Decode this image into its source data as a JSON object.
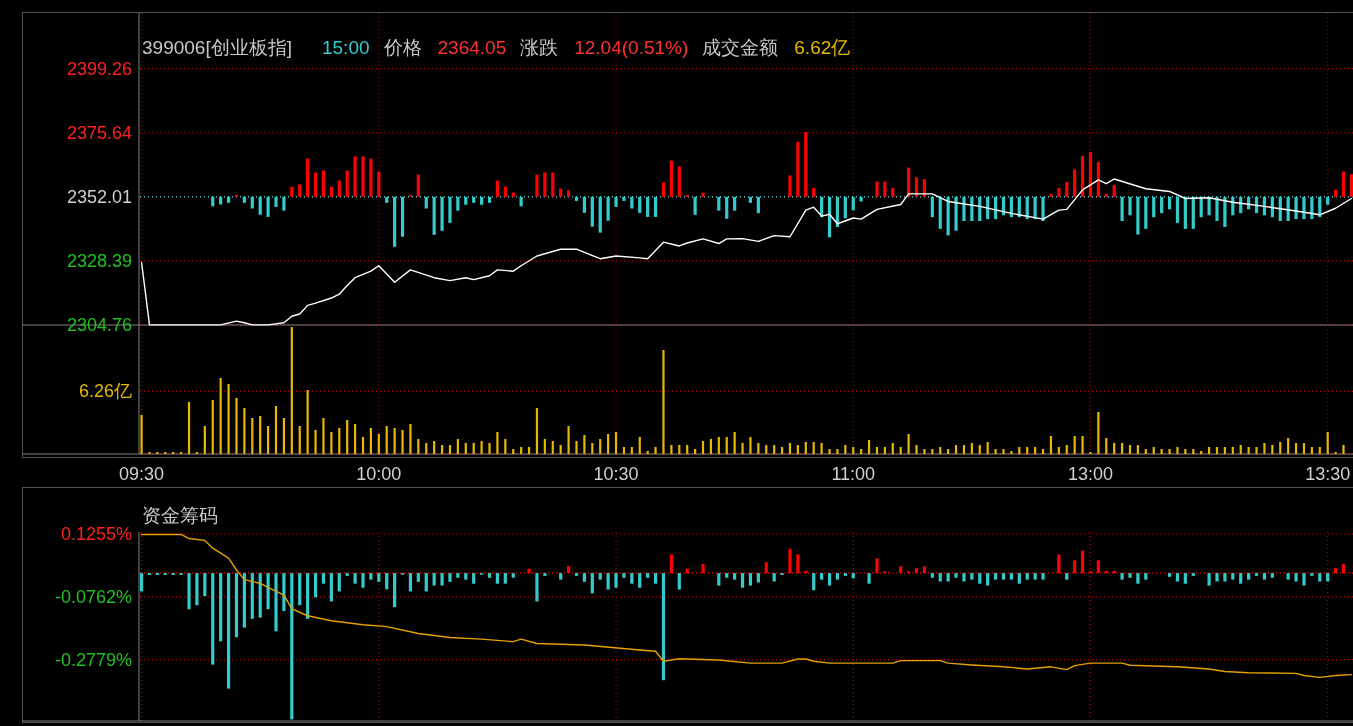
{
  "chart_data": [
    {
      "type": "line",
      "title": "399006[创业板指]",
      "annotations": [
        "15:00",
        "价格",
        "2364.05",
        "涨跌",
        "12.04(0.51%)",
        "成交金额",
        "6.62亿"
      ],
      "categories": [
        null,
        null,
        null,
        null,
        null,
        null,
        null,
        null,
        null,
        null,
        null,
        null,
        null,
        null,
        null,
        null,
        null,
        null,
        null,
        null,
        null,
        null,
        null,
        null,
        null,
        null,
        null,
        null,
        null,
        null,
        null,
        null,
        null,
        null,
        null,
        null,
        null,
        null,
        null,
        null,
        null,
        null,
        null,
        null,
        null,
        null,
        null,
        null,
        null,
        null,
        null,
        null,
        null,
        null,
        null,
        null,
        null,
        null,
        null,
        null,
        null,
        null,
        null,
        null,
        null,
        null,
        null,
        null,
        null,
        null,
        null,
        null,
        null,
        null,
        null,
        null,
        null,
        null,
        null,
        null,
        null,
        null,
        null,
        null,
        null,
        null,
        null,
        null,
        null,
        null,
        null,
        null,
        null,
        null,
        null,
        null,
        null,
        null,
        null,
        null,
        null,
        null,
        null,
        null,
        null,
        null,
        null,
        null,
        null,
        null,
        null,
        null,
        null,
        null,
        null,
        null,
        null,
        null,
        null,
        null,
        null,
        null,
        null,
        null,
        null,
        null,
        null,
        null,
        null,
        null,
        null,
        null,
        null,
        null,
        null,
        null,
        null,
        null,
        null,
        null,
        null,
        null,
        null,
        null,
        null,
        null,
        null,
        null,
        null,
        null,
        null,
        null,
        null,
        null
      ],
      "ylim": [
        2304.76,
        2419.8
      ],
      "yticks": [
        2304.76,
        2328.39,
        2352.01,
        2375.64,
        2399.26
      ],
      "grid": true,
      "tick_labels": "y",
      "ref_lines": [
        {
          "axis": "y",
          "value": 2352.01,
          "line_style": "dotted",
          "color": "#33cccc"
        }
      ],
      "series": [
        {
          "type": "bar",
          "color": "#ff0000",
          "base": [
            null,
            null,
            null,
            null,
            null,
            null,
            null,
            null,
            null,
            null,
            null,
            null,
            2352.01,
            null,
            null,
            null,
            null,
            null,
            null,
            2352.01,
            2352.01,
            2352.01,
            2352.01,
            2352.01,
            2352.01,
            2352.01,
            2352.01,
            2352.01,
            2352.01,
            2352.01,
            2352.01,
            null,
            null,
            null,
            2352.01,
            2352.01,
            null,
            null,
            null,
            null,
            null,
            null,
            null,
            null,
            null,
            2352.01,
            2352.01,
            2352.01,
            null,
            null,
            2352.01,
            2352.01,
            2352.01,
            2352.01,
            2352.01,
            null,
            null,
            null,
            null,
            null,
            null,
            null,
            null,
            null,
            null,
            null,
            2352.01,
            2352.01,
            2352.01,
            2352.01,
            null,
            2352.01,
            null,
            null,
            null,
            null,
            null,
            null,
            null,
            null,
            null,
            null,
            2352.01,
            2352.01,
            2352.01,
            2352.01,
            null,
            null,
            null,
            null,
            null,
            null,
            null,
            2352.01,
            2352.01,
            2352.01,
            null,
            2352.01,
            2352.01,
            2352.01,
            null,
            null,
            null,
            null,
            null,
            null,
            null,
            null,
            null,
            null,
            null,
            null,
            null,
            null,
            null,
            2352.01,
            2352.01,
            2352.01,
            2352.01,
            2352.01,
            2352.01,
            2352.01,
            2352.01,
            2352.01,
            null,
            null,
            null,
            null,
            null,
            null,
            null,
            null,
            null,
            null,
            null,
            null,
            null,
            null,
            null,
            null,
            null,
            null,
            null,
            null,
            null,
            null,
            null,
            null,
            null,
            null,
            null,
            2352.01,
            2352.01,
            2352.01
          ],
          "values": [
            null,
            null,
            null,
            null,
            null,
            null,
            null,
            null,
            null,
            null,
            null,
            null,
            0.7,
            null,
            null,
            null,
            null,
            null,
            null,
            3.7,
            4.6,
            14.1,
            9.0,
            9.7,
            3.7,
            6.0,
            9.7,
            14.9,
            14.9,
            14.1,
            9.3,
            null,
            null,
            null,
            0.7,
            8.2,
            null,
            null,
            null,
            null,
            null,
            null,
            null,
            null,
            null,
            6.0,
            3.8,
            1.6,
            null,
            null,
            8.2,
            9.0,
            9.0,
            3.1,
            2.4,
            null,
            null,
            null,
            null,
            null,
            null,
            null,
            null,
            null,
            null,
            null,
            5.3,
            13.4,
            11.2,
            0.7,
            null,
            1.5,
            null,
            null,
            null,
            null,
            null,
            null,
            null,
            null,
            null,
            null,
            7.9,
            20.3,
            23.9,
            3.3,
            null,
            null,
            null,
            null,
            null,
            null,
            null,
            5.7,
            5.7,
            3.3,
            null,
            10.8,
            7.2,
            6.5,
            null,
            null,
            null,
            null,
            null,
            null,
            null,
            null,
            null,
            null,
            null,
            null,
            null,
            null,
            null,
            1.1,
            3.3,
            5.5,
            10.1,
            15.1,
            16.5,
            12.9,
            1.1,
            4.3,
            null,
            null,
            null,
            null,
            null,
            null,
            null,
            null,
            null,
            null,
            null,
            null,
            null,
            null,
            null,
            null,
            null,
            null,
            null,
            null,
            null,
            null,
            null,
            null,
            null,
            null,
            null,
            2.6,
            9.3,
            8.3
          ]
        },
        {
          "type": "bar",
          "color": "#33cccc",
          "base": [
            null,
            null,
            null,
            null,
            null,
            null,
            null,
            null,
            null,
            2352.01,
            2352.01,
            2352.01,
            null,
            2352.01,
            2352.01,
            2352.01,
            2352.01,
            2352.01,
            2352.01,
            null,
            null,
            null,
            null,
            null,
            null,
            null,
            null,
            null,
            null,
            null,
            null,
            2352.01,
            2352.01,
            2352.01,
            null,
            null,
            2352.01,
            2352.01,
            2352.01,
            2352.01,
            2352.01,
            2352.01,
            2352.01,
            2352.01,
            2352.01,
            null,
            null,
            null,
            2352.01,
            null,
            null,
            null,
            null,
            null,
            null,
            2352.01,
            2352.01,
            2352.01,
            2352.01,
            2352.01,
            2352.01,
            2352.01,
            2352.01,
            2352.01,
            2352.01,
            2352.01,
            null,
            null,
            null,
            null,
            2352.01,
            null,
            null,
            2352.01,
            2352.01,
            2352.01,
            null,
            2352.01,
            2352.01,
            null,
            null,
            null,
            null,
            null,
            null,
            null,
            2352.01,
            2352.01,
            2352.01,
            2352.01,
            2352.01,
            2352.01,
            null,
            null,
            null,
            null,
            null,
            null,
            null,
            null,
            2352.01,
            2352.01,
            2352.01,
            2352.01,
            2352.01,
            2352.01,
            2352.01,
            2352.01,
            2352.01,
            2352.01,
            2352.01,
            2352.01,
            2352.01,
            2352.01,
            2352.01,
            null,
            null,
            null,
            null,
            null,
            null,
            null,
            null,
            null,
            2352.01,
            2352.01,
            2352.01,
            2352.01,
            2352.01,
            2352.01,
            2352.01,
            2352.01,
            2352.01,
            2352.01,
            2352.01,
            2352.01,
            2352.01,
            2352.01,
            2352.01,
            2352.01,
            2352.01,
            2352.01,
            2352.01,
            2352.01,
            2352.01,
            2352.01,
            2352.01,
            2352.01,
            2352.01,
            2352.01,
            2352.01,
            null,
            null,
            null
          ],
          "values": [
            null,
            null,
            null,
            null,
            null,
            null,
            null,
            null,
            null,
            -3.5,
            -2.8,
            -2.2,
            null,
            -2.2,
            -4.3,
            -6.6,
            -7.4,
            -3.7,
            -5.1,
            null,
            null,
            null,
            null,
            null,
            null,
            null,
            null,
            null,
            null,
            null,
            null,
            -2.2,
            -18.4,
            -14.7,
            null,
            null,
            -4.3,
            -14.0,
            -12.5,
            -9.6,
            -5.1,
            -2.9,
            -2.2,
            -2.9,
            -2.2,
            null,
            null,
            null,
            -3.5,
            null,
            null,
            null,
            null,
            null,
            null,
            -1.5,
            -5.9,
            -11.0,
            -13.2,
            -8.8,
            -3.7,
            -1.5,
            -4.3,
            -5.9,
            -7.4,
            -7.4,
            null,
            null,
            null,
            null,
            -6.6,
            null,
            null,
            -5.1,
            -8.1,
            -5.1,
            null,
            -2.2,
            -6.0,
            null,
            null,
            null,
            null,
            null,
            null,
            null,
            -7.5,
            -14.9,
            -11.1,
            -7.9,
            -5.0,
            -1.7,
            null,
            null,
            null,
            null,
            null,
            null,
            null,
            null,
            -7.5,
            -11.8,
            -14.2,
            -12.5,
            -8.9,
            -8.9,
            -8.9,
            -8.2,
            -8.2,
            -6.8,
            -7.5,
            -7.5,
            -8.2,
            -8.2,
            -8.9,
            null,
            null,
            null,
            null,
            null,
            null,
            null,
            null,
            null,
            -8.9,
            -6.8,
            -13.9,
            -11.8,
            -7.5,
            -6.0,
            -4.6,
            -9.6,
            -11.8,
            -11.8,
            -7.5,
            -6.8,
            -8.9,
            -11.1,
            -6.8,
            -6.0,
            -4.6,
            -6.0,
            -6.8,
            -7.5,
            -8.9,
            -8.9,
            -8.2,
            -8.2,
            -8.2,
            -7.5,
            -2.9,
            null,
            null,
            null
          ]
        },
        {
          "color": "#ffffff",
          "values": [
            2327.8,
            2304.8,
            null,
            null,
            null,
            null,
            null,
            null,
            null,
            null,
            2304.8,
            null,
            2306.2,
            2305.6,
            2304.8,
            null,
            2304.8,
            null,
            2305.6,
            2308.0,
            2308.8,
            2312.0,
            2312.8,
            null,
            2314.7,
            2316.1,
            2319.3,
            2322.2,
            null,
            2324.6,
            2326.6,
            null,
            2320.5,
            null,
            2325.1,
            null,
            null,
            2322.2,
            null,
            2321.1,
            null,
            2322.2,
            2321.5,
            null,
            2322.9,
            2325.1,
            null,
            2324.6,
            2326.6,
            null,
            2330.2,
            null,
            null,
            2332.7,
            null,
            2332.7,
            null,
            null,
            2329.2,
            null,
            2330.2,
            null,
            null,
            2329.5,
            2329.2,
            null,
            2335.3,
            null,
            2333.9,
            2335.0,
            null,
            2336.5,
            null,
            2334.8,
            2336.5,
            null,
            2336.6,
            null,
            2335.6,
            null,
            2337.7,
            null,
            2337.3,
            null,
            2347.1,
            2348.2,
            2344.9,
            2345.6,
            2342.1,
            null,
            2344.2,
            2343.8,
            null,
            2347.4,
            null,
            null,
            2349.2,
            2353.1,
            null,
            null,
            2353.1,
            null,
            2350.3,
            null,
            null,
            null,
            2348.5,
            null,
            null,
            null,
            2345.9,
            null,
            null,
            null,
            2343.8,
            null,
            2347.1,
            2347.4,
            null,
            2354.6,
            2356.4,
            2358.3,
            2356.9,
            2358.6,
            null,
            null,
            null,
            2355.0,
            null,
            null,
            2354.0,
            null,
            2351.4,
            null,
            null,
            2351.7,
            null,
            null,
            2350.0,
            null,
            null,
            null,
            2348.5,
            null,
            null,
            null,
            2346.8,
            null,
            null,
            2345.4,
            null,
            2347.8,
            null,
            2351.4
          ]
        }
      ]
    },
    {
      "type": "bar",
      "color": "#e6b800",
      "categories": [
        "09:30",
        null,
        null,
        null,
        null,
        null,
        null,
        null,
        null,
        null,
        null,
        null,
        null,
        null,
        null,
        null,
        null,
        null,
        null,
        null,
        null,
        null,
        null,
        null,
        null,
        null,
        null,
        null,
        null,
        null,
        "10:00",
        null,
        null,
        null,
        null,
        null,
        null,
        null,
        null,
        null,
        null,
        null,
        null,
        null,
        null,
        null,
        null,
        null,
        null,
        null,
        null,
        null,
        null,
        null,
        null,
        null,
        null,
        null,
        null,
        null,
        "10:30",
        null,
        null,
        null,
        null,
        null,
        null,
        null,
        null,
        null,
        null,
        null,
        null,
        null,
        null,
        null,
        null,
        null,
        null,
        null,
        null,
        null,
        null,
        null,
        null,
        null,
        null,
        null,
        null,
        null,
        "11:00",
        null,
        null,
        null,
        null,
        null,
        null,
        null,
        null,
        null,
        null,
        null,
        null,
        null,
        null,
        null,
        null,
        null,
        null,
        null,
        null,
        null,
        null,
        null,
        null,
        null,
        null,
        null,
        null,
        null,
        "13:00",
        null,
        null,
        null,
        null,
        null,
        null,
        null,
        null,
        null,
        null,
        null,
        null,
        null,
        null,
        null,
        null,
        null,
        null,
        null,
        null,
        null,
        null,
        null,
        null,
        null,
        null,
        null,
        null,
        null,
        "13:30",
        null,
        null,
        null
      ],
      "ylim": [
        0,
        12.9
      ],
      "yticks": [
        {
          "value": 0,
          "label": null
        },
        {
          "value": 6.26,
          "label": "6.26亿"
        }
      ],
      "grid": true,
      "values": [
        3.9,
        0.2,
        0.2,
        0.2,
        0.2,
        0.2,
        5.2,
        0.2,
        2.8,
        5.4,
        7.6,
        7.0,
        5.6,
        4.6,
        3.6,
        3.8,
        2.8,
        4.8,
        3.6,
        12.7,
        2.8,
        6.4,
        2.4,
        3.6,
        2.2,
        2.6,
        3.4,
        3.0,
        1.7,
        2.6,
        2.0,
        2.8,
        2.6,
        2.4,
        3.0,
        1.5,
        1.1,
        1.3,
        0.9,
        0.9,
        1.5,
        1.1,
        1.1,
        1.3,
        1.1,
        2.2,
        1.5,
        0.5,
        0.7,
        0.7,
        4.6,
        1.5,
        1.3,
        0.9,
        2.8,
        1.3,
        1.9,
        1.1,
        1.5,
        2.0,
        2.2,
        0.7,
        0.7,
        1.7,
        0.3,
        0.7,
        10.4,
        0.9,
        0.9,
        0.9,
        0.5,
        1.3,
        1.5,
        1.7,
        1.7,
        2.2,
        1.1,
        1.7,
        1.1,
        0.9,
        0.9,
        0.7,
        1.1,
        0.9,
        1.2,
        1.2,
        1.1,
        0.5,
        0.5,
        0.9,
        0.7,
        0.5,
        1.4,
        0.7,
        0.7,
        1.1,
        0.7,
        2.0,
        0.9,
        0.5,
        0.5,
        0.7,
        0.5,
        0.9,
        0.9,
        1.1,
        0.9,
        1.2,
        0.5,
        0.5,
        0.3,
        0.7,
        0.7,
        0.7,
        0.5,
        1.8,
        0.7,
        0.9,
        1.8,
        1.8,
        0.2,
        4.2,
        1.6,
        1.1,
        1.1,
        0.9,
        0.9,
        0.5,
        0.7,
        0.5,
        0.5,
        0.7,
        0.5,
        0.5,
        0.3,
        0.7,
        0.7,
        0.7,
        0.7,
        0.9,
        0.7,
        0.7,
        1.1,
        0.9,
        1.2,
        1.6,
        1.1,
        1.1,
        0.7,
        0.7,
        2.2,
        0.2,
        0.9,
        null
      ]
    },
    {
      "type": "bar",
      "title": "资金筹码",
      "categories": [
        null,
        null,
        null,
        null,
        null,
        null,
        null,
        null,
        null,
        null,
        null,
        null,
        null,
        null,
        null,
        null,
        null,
        null,
        null,
        null,
        null,
        null,
        null,
        null,
        null,
        null,
        null,
        null,
        null,
        null,
        null,
        null,
        null,
        null,
        null,
        null,
        null,
        null,
        null,
        null,
        null,
        null,
        null,
        null,
        null,
        null,
        null,
        null,
        null,
        null,
        null,
        null,
        null,
        null,
        null,
        null,
        null,
        null,
        null,
        null,
        null,
        null,
        null,
        null,
        null,
        null,
        null,
        null,
        null,
        null,
        null,
        null,
        null,
        null,
        null,
        null,
        null,
        null,
        null,
        null,
        null,
        null,
        null,
        null,
        null,
        null,
        null,
        null,
        null,
        null,
        null,
        null,
        null,
        null,
        null,
        null,
        null,
        null,
        null,
        null,
        null,
        null,
        null,
        null,
        null,
        null,
        null,
        null,
        null,
        null,
        null,
        null,
        null,
        null,
        null,
        null,
        null,
        null,
        null,
        null,
        null,
        null,
        null,
        null,
        null,
        null,
        null,
        null,
        null,
        null,
        null,
        null,
        null,
        null,
        null,
        null,
        null,
        null,
        null,
        null,
        null,
        null,
        null,
        null,
        null,
        null,
        null,
        null,
        null,
        null,
        null,
        null,
        null,
        null
      ],
      "ylim": [
        -0.475,
        0.132
      ],
      "yticks": [
        {
          "value": -0.2779,
          "label": "-0.2779%"
        },
        {
          "value": -0.0762,
          "label": "-0.0762%"
        },
        {
          "value": 0.1255,
          "label": "0.1255%"
        }
      ],
      "grid": true,
      "tick_labels": "y",
      "ref_lines": [
        {
          "axis": "y",
          "value": 0,
          "line_style": "dotted",
          "color": "#cc0000"
        }
      ],
      "series": [
        {
          "color": "#ff0000",
          "values": [
            null,
            null,
            null,
            null,
            null,
            null,
            null,
            null,
            null,
            null,
            null,
            null,
            null,
            null,
            null,
            null,
            null,
            null,
            null,
            null,
            null,
            null,
            null,
            null,
            null,
            null,
            null,
            null,
            null,
            null,
            null,
            null,
            null,
            null,
            null,
            null,
            null,
            null,
            null,
            null,
            null,
            null,
            null,
            null,
            null,
            null,
            null,
            null,
            null,
            0.014,
            null,
            null,
            null,
            null,
            0.023,
            null,
            null,
            null,
            null,
            null,
            null,
            null,
            null,
            null,
            null,
            null,
            null,
            0.06,
            null,
            0.014,
            null,
            0.029,
            null,
            null,
            null,
            null,
            null,
            null,
            null,
            0.035,
            null,
            null,
            0.078,
            0.06,
            0.007,
            null,
            null,
            null,
            null,
            null,
            null,
            null,
            null,
            0.047,
            0.006,
            null,
            0.022,
            0.006,
            0.016,
            0.022,
            null,
            null,
            null,
            null,
            null,
            null,
            null,
            null,
            null,
            null,
            null,
            null,
            null,
            null,
            null,
            null,
            0.06,
            null,
            0.041,
            0.072,
            0.006,
            0.041,
            0.007,
            0.007,
            null,
            null,
            null,
            null,
            null,
            null,
            null,
            null,
            null,
            null,
            null,
            null,
            null,
            null,
            null,
            null,
            null,
            null,
            null,
            null,
            null,
            null,
            null,
            null,
            null,
            null,
            null,
            0.016,
            0.029,
            null
          ]
        },
        {
          "color": "#33cccc",
          "values": [
            -0.059,
            -0.006,
            -0.006,
            -0.006,
            -0.006,
            -0.006,
            -0.116,
            -0.103,
            -0.074,
            -0.294,
            -0.219,
            -0.371,
            -0.206,
            -0.175,
            -0.147,
            -0.143,
            -0.116,
            -0.187,
            -0.122,
            -0.47,
            -0.103,
            -0.147,
            -0.078,
            -0.034,
            -0.091,
            -0.059,
            -0.009,
            -0.034,
            -0.047,
            -0.021,
            -0.028,
            -0.052,
            -0.109,
            -0.005,
            -0.059,
            -0.028,
            -0.059,
            -0.04,
            -0.04,
            -0.028,
            -0.015,
            -0.021,
            -0.034,
            -0.005,
            -0.015,
            -0.034,
            -0.034,
            -0.015,
            null,
            null,
            -0.091,
            -0.009,
            null,
            -0.021,
            null,
            -0.009,
            -0.028,
            -0.065,
            -0.021,
            -0.053,
            -0.047,
            -0.015,
            -0.034,
            -0.047,
            -0.015,
            -0.034,
            -0.344,
            null,
            -0.053,
            null,
            null,
            null,
            null,
            -0.04,
            -0.015,
            -0.021,
            -0.047,
            -0.04,
            -0.03,
            null,
            -0.027,
            -0.006,
            null,
            null,
            null,
            -0.055,
            -0.021,
            -0.04,
            -0.021,
            -0.009,
            -0.017,
            null,
            -0.034,
            null,
            null,
            null,
            null,
            null,
            null,
            null,
            -0.015,
            -0.027,
            -0.027,
            -0.015,
            -0.027,
            -0.021,
            -0.034,
            -0.04,
            -0.021,
            -0.021,
            -0.021,
            -0.034,
            -0.021,
            -0.021,
            -0.021,
            null,
            null,
            -0.021,
            null,
            null,
            null,
            null,
            null,
            null,
            -0.021,
            -0.015,
            -0.034,
            -0.021,
            null,
            null,
            -0.012,
            -0.027,
            -0.034,
            -0.009,
            null,
            -0.04,
            -0.027,
            -0.027,
            -0.021,
            -0.034,
            -0.021,
            -0.009,
            -0.021,
            -0.015,
            null,
            -0.021,
            -0.027,
            -0.04,
            -0.009,
            -0.027,
            -0.027,
            null,
            null,
            null
          ]
        },
        {
          "type": "line",
          "color": "#e6a000",
          "values": [
            0.124,
            null,
            null,
            null,
            null,
            0.124,
            0.111,
            null,
            0.105,
            0.08,
            null,
            0.048,
            0.01,
            -0.021,
            null,
            -0.033,
            -0.046,
            null,
            -0.071,
            -0.115,
            null,
            -0.137,
            null,
            null,
            -0.153,
            null,
            null,
            null,
            -0.166,
            null,
            null,
            -0.172,
            null,
            null,
            null,
            -0.194,
            null,
            null,
            null,
            -0.207,
            null,
            null,
            null,
            -0.212,
            null,
            null,
            null,
            -0.22,
            -0.212,
            null,
            -0.226,
            null,
            null,
            null,
            null,
            null,
            -0.231,
            null,
            null,
            null,
            null,
            null,
            null,
            -0.247,
            null,
            -0.251,
            -0.283,
            null,
            -0.275,
            null,
            null,
            null,
            null,
            -0.279,
            null,
            null,
            null,
            -0.289,
            null,
            null,
            null,
            -0.289,
            null,
            -0.276,
            -0.276,
            -0.283,
            null,
            -0.289,
            null,
            null,
            null,
            null,
            null,
            null,
            null,
            -0.289,
            -0.281,
            null,
            null,
            null,
            null,
            -0.281,
            -0.289,
            null,
            null,
            -0.295,
            null,
            null,
            null,
            -0.301,
            null,
            null,
            -0.308,
            null,
            null,
            -0.301,
            null,
            -0.31,
            -0.297,
            null,
            -0.289,
            null,
            null,
            null,
            -0.289,
            -0.296,
            null,
            null,
            null,
            null,
            null,
            -0.301,
            null,
            null,
            null,
            -0.308,
            null,
            -0.316,
            null,
            null,
            -0.32,
            null,
            null,
            null,
            null,
            null,
            -0.322,
            -0.329,
            null,
            -0.335,
            null,
            -0.329,
            null,
            -0.326
          ]
        }
      ]
    }
  ]
}
